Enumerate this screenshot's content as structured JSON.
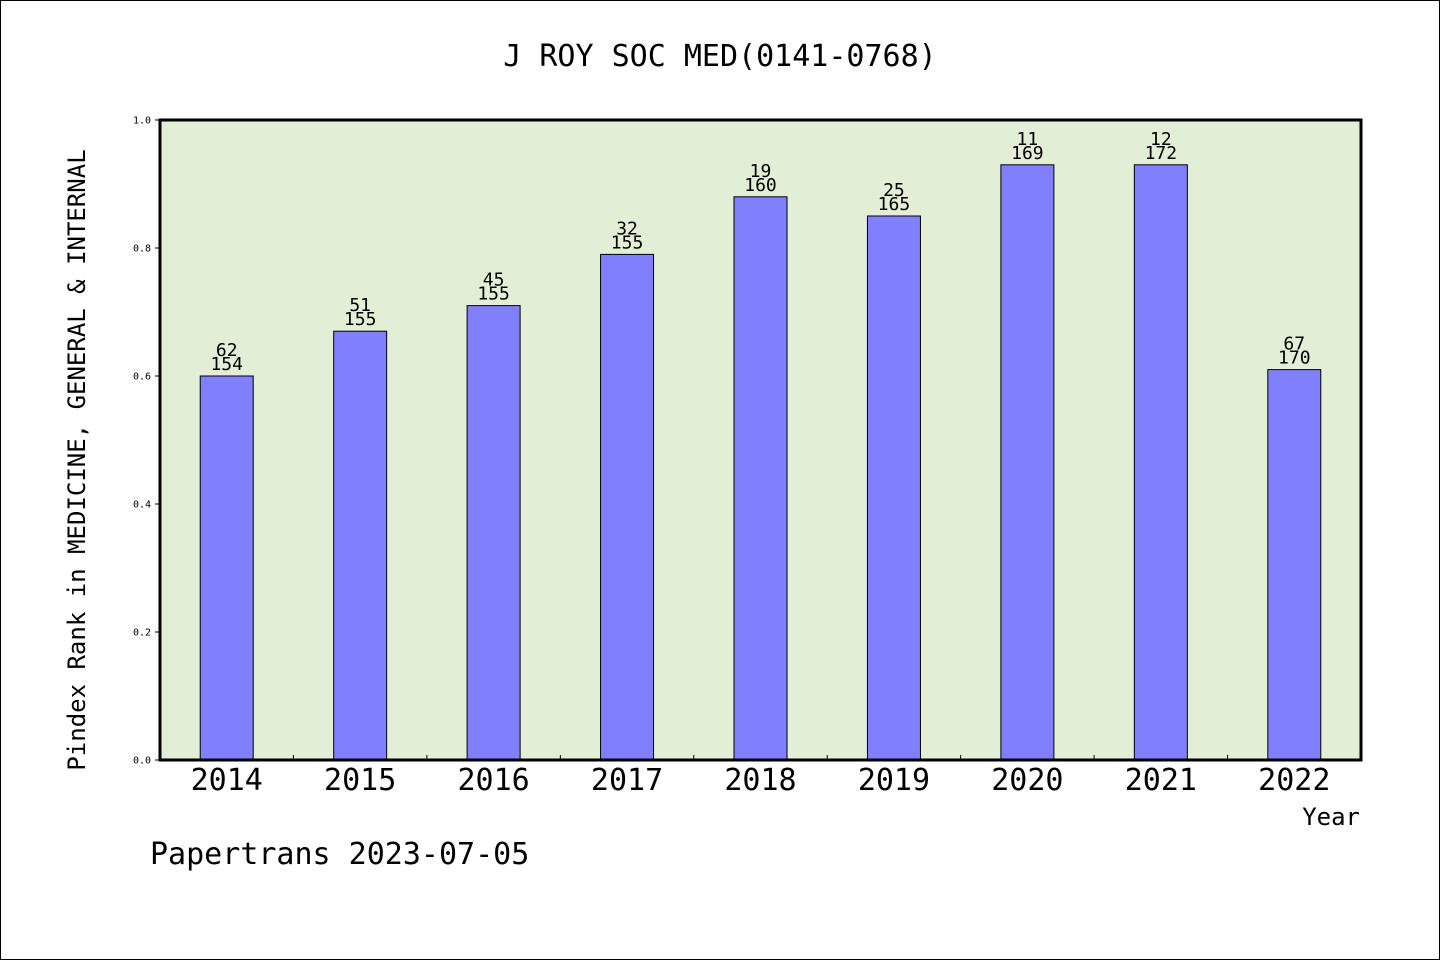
{
  "chart_data": {
    "type": "bar",
    "title": "J ROY SOC MED(0141-0768)",
    "xlabel": "Year",
    "ylabel": "Pindex Rank in MEDICINE, GENERAL & INTERNAL",
    "categories": [
      "2014",
      "2015",
      "2016",
      "2017",
      "2018",
      "2019",
      "2020",
      "2021",
      "2022"
    ],
    "values": [
      0.6,
      0.67,
      0.71,
      0.79,
      0.88,
      0.85,
      0.93,
      0.93,
      0.61
    ],
    "rank_labels": [
      "62",
      "51",
      "45",
      "32",
      "19",
      "25",
      "11",
      "12",
      "67"
    ],
    "total_labels": [
      "154",
      "155",
      "155",
      "155",
      "160",
      "165",
      "169",
      "172",
      "170"
    ],
    "ylim": [
      0,
      1.0
    ],
    "yticks": [
      "0.0",
      "0.2",
      "0.4",
      "0.6",
      "0.8",
      "1.0"
    ],
    "grid": false,
    "colors": {
      "bar": "#8080ff",
      "plot_bg": "#e2efd6"
    }
  },
  "footer": "Papertrans 2023-07-05"
}
